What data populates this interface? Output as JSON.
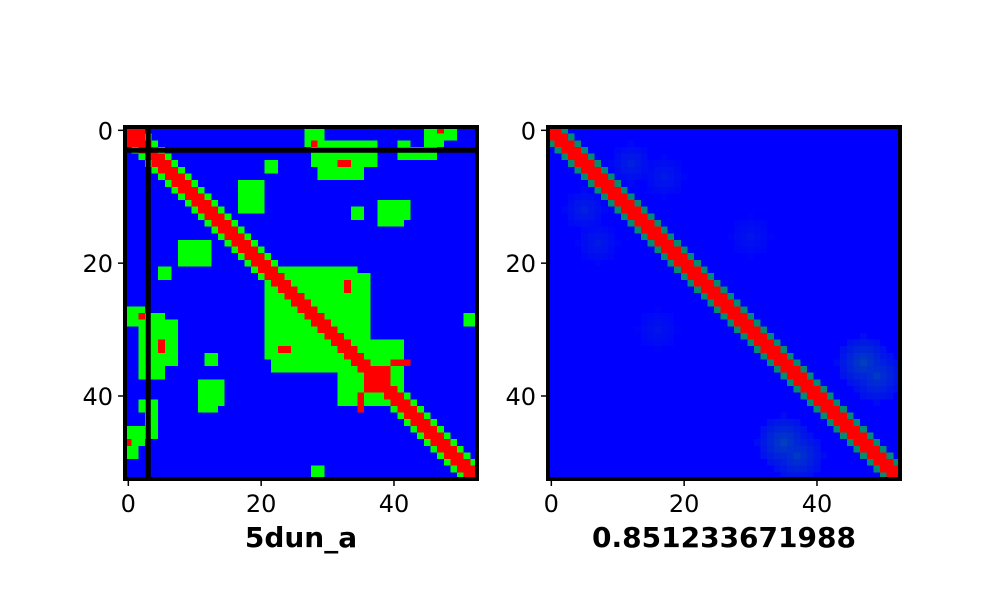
{
  "chart_data": [
    {
      "type": "heatmap",
      "panel": "left",
      "title": "",
      "caption": "5dun_a",
      "xlabel": "",
      "ylabel": "",
      "size": 53,
      "xlim": [
        0,
        52
      ],
      "ylim": [
        0,
        52
      ],
      "x_ticks": [
        0,
        20,
        40
      ],
      "y_ticks": [
        0,
        20,
        40
      ],
      "colors": {
        "low": "#0000ff",
        "mid": "#00ff00",
        "high": "#ff0000"
      },
      "description_levels": [
        "no contact",
        "contact",
        "near-diagonal"
      ],
      "guide_lines": {
        "row": 3,
        "col": 3,
        "color": "#000000"
      },
      "diagonal_band": {
        "center_half_width": 1,
        "value": "high"
      },
      "contact_blocks": [
        {
          "rows": [
            0,
            1
          ],
          "cols": [
            0,
            2
          ],
          "value": "high"
        },
        {
          "rows": [
            0,
            2
          ],
          "cols": [
            27,
            29
          ],
          "value": "mid"
        },
        {
          "rows": [
            0,
            1
          ],
          "cols": [
            45,
            49
          ],
          "value": "mid"
        },
        {
          "rows": [
            0,
            0
          ],
          "cols": [
            47,
            47
          ],
          "value": "high"
        },
        {
          "rows": [
            2,
            5
          ],
          "cols": [
            28,
            37
          ],
          "value": "mid"
        },
        {
          "rows": [
            5,
            5
          ],
          "cols": [
            32,
            33
          ],
          "value": "high"
        },
        {
          "rows": [
            3,
            4
          ],
          "cols": [
            41,
            46
          ],
          "value": "mid"
        },
        {
          "rows": [
            8,
            12
          ],
          "cols": [
            18,
            20
          ],
          "value": "mid"
        },
        {
          "rows": [
            11,
            13
          ],
          "cols": [
            39,
            42
          ],
          "value": "mid"
        },
        {
          "rows": [
            12,
            13
          ],
          "cols": [
            34,
            35
          ],
          "value": "mid"
        },
        {
          "rows": [
            17,
            20
          ],
          "cols": [
            8,
            12
          ],
          "value": "mid"
        },
        {
          "rows": [
            21,
            22
          ],
          "cols": [
            5,
            6
          ],
          "value": "mid"
        },
        {
          "rows": [
            21,
            36
          ],
          "cols": [
            22,
            34
          ],
          "value": "mid"
        },
        {
          "rows": [
            23,
            24
          ],
          "cols": [
            33,
            33
          ],
          "value": "high"
        },
        {
          "rows": [
            32,
            41
          ],
          "cols": [
            33,
            41
          ],
          "value": "mid"
        },
        {
          "rows": [
            38,
            39
          ],
          "cols": [
            36,
            38
          ],
          "value": "high"
        },
        {
          "rows": [
            40,
            42
          ],
          "cols": [
            35,
            35
          ],
          "value": "high"
        },
        {
          "rows": [
            27,
            29
          ],
          "cols": [
            2,
            2
          ],
          "value": "mid"
        },
        {
          "rows": [
            28,
            28
          ],
          "cols": [
            2,
            2
          ],
          "value": "high"
        },
        {
          "rows": [
            29,
            35
          ],
          "cols": [
            4,
            7
          ],
          "value": "mid"
        },
        {
          "rows": [
            32,
            33
          ],
          "cols": [
            5,
            5
          ],
          "value": "high"
        },
        {
          "rows": [
            28,
            29
          ],
          "cols": [
            51,
            52
          ],
          "value": "mid"
        },
        {
          "rows": [
            34,
            35
          ],
          "cols": [
            13,
            13
          ],
          "value": "mid"
        },
        {
          "rows": [
            38,
            41
          ],
          "cols": [
            11,
            14
          ],
          "value": "mid"
        },
        {
          "rows": [
            41,
            42
          ],
          "cols": [
            2,
            3
          ],
          "value": "mid"
        },
        {
          "rows": [
            45,
            47
          ],
          "cols": [
            0,
            2
          ],
          "value": "mid"
        },
        {
          "rows": [
            47,
            47
          ],
          "cols": [
            0,
            0
          ],
          "value": "high"
        },
        {
          "rows": [
            51,
            52
          ],
          "cols": [
            28,
            29
          ],
          "value": "mid"
        }
      ]
    },
    {
      "type": "heatmap",
      "panel": "right",
      "title": "",
      "caption": "0.851233671988",
      "xlabel": "",
      "ylabel": "",
      "size": 53,
      "xlim": [
        0,
        52
      ],
      "ylim": [
        0,
        52
      ],
      "x_ticks": [
        0,
        20,
        40
      ],
      "y_ticks": [
        0,
        20,
        40
      ],
      "colors": {
        "low": "#0000ff",
        "mid": "#00ff00",
        "high": "#ff0000"
      },
      "diagonal_band": {
        "center_half_width": 1,
        "value": "high",
        "shoulder_width": 1
      },
      "faint_blobs": [
        {
          "row": 5,
          "col": 12,
          "radius": 3,
          "strength": 0.12
        },
        {
          "row": 17,
          "col": 7,
          "radius": 3,
          "strength": 0.1
        },
        {
          "row": 37,
          "col": 49,
          "radius": 4,
          "strength": 0.22
        },
        {
          "row": 47,
          "col": 35,
          "radius": 4,
          "strength": 0.25
        },
        {
          "row": 16,
          "col": 30,
          "radius": 3,
          "strength": 0.08
        },
        {
          "row": 30,
          "col": 16,
          "radius": 3,
          "strength": 0.08
        }
      ]
    }
  ]
}
